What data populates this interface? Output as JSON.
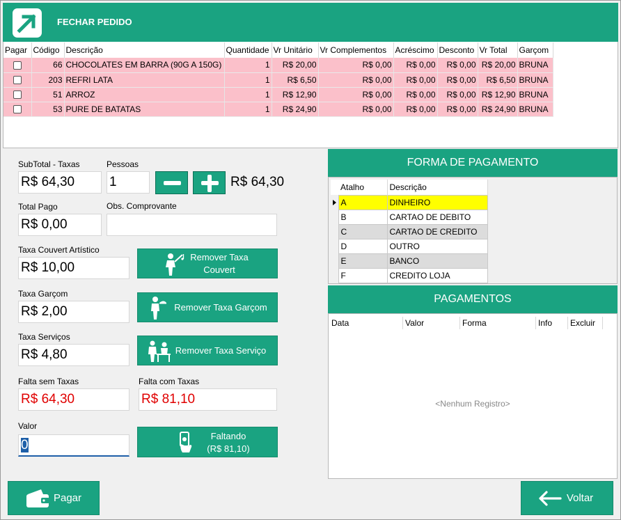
{
  "header": {
    "title": "FECHAR PEDIDO"
  },
  "order_table": {
    "columns": [
      "Pagar",
      "Código",
      "Descrição",
      "Quantidade",
      "Vr Unitário",
      "Vr Complementos",
      "Acréscimo",
      "Desconto",
      "Vr Total",
      "Garçom"
    ],
    "rows": [
      {
        "codigo": "66",
        "descricao": "CHOCOLATES EM BARRA (90G A 150G)",
        "quantidade": "1",
        "vr_unitario": "R$ 20,00",
        "vr_complementos": "R$ 0,00",
        "acrescimo": "R$ 0,00",
        "desconto": "R$ 0,00",
        "vr_total": "R$ 20,00",
        "garcom": "BRUNA"
      },
      {
        "codigo": "203",
        "descricao": "REFRI LATA",
        "quantidade": "1",
        "vr_unitario": "R$ 6,50",
        "vr_complementos": "R$ 0,00",
        "acrescimo": "R$ 0,00",
        "desconto": "R$ 0,00",
        "vr_total": "R$ 6,50",
        "garcom": "BRUNA"
      },
      {
        "codigo": "51",
        "descricao": "ARROZ",
        "quantidade": "1",
        "vr_unitario": "R$ 12,90",
        "vr_complementos": "R$ 0,00",
        "acrescimo": "R$ 0,00",
        "desconto": "R$ 0,00",
        "vr_total": "R$ 12,90",
        "garcom": "BRUNA"
      },
      {
        "codigo": "53",
        "descricao": "PURE DE BATATAS",
        "quantidade": "1",
        "vr_unitario": "R$ 24,90",
        "vr_complementos": "R$ 0,00",
        "acrescimo": "R$ 0,00",
        "desconto": "R$ 0,00",
        "vr_total": "R$ 24,90",
        "garcom": "BRUNA"
      }
    ]
  },
  "form": {
    "subtotal_label": "SubTotal - Taxas",
    "subtotal_value": "R$ 64,30",
    "pessoas_label": "Pessoas",
    "pessoas_value": "1",
    "per_person_value": "R$ 64,30",
    "total_pago_label": "Total Pago",
    "total_pago_value": "R$ 0,00",
    "obs_label": "Obs. Comprovante",
    "obs_value": "",
    "taxa_couvert_label": "Taxa Couvert Artístico",
    "taxa_couvert_value": "R$ 10,00",
    "remover_couvert_label_1": "Remover Taxa",
    "remover_couvert_label_2": "Couvert",
    "taxa_garcom_label": "Taxa Garçom",
    "taxa_garcom_value": "R$ 2,00",
    "remover_garcom_label": "Remover Taxa Garçom",
    "taxa_servicos_label": "Taxa Serviços",
    "taxa_servicos_value": "R$ 4,80",
    "remover_servico_label": "Remover Taxa Serviço",
    "falta_sem_label": "Falta sem Taxas",
    "falta_sem_value": "R$ 64,30",
    "falta_com_label": "Falta com Taxas",
    "falta_com_value": "R$ 81,10",
    "valor_label": "Valor",
    "valor_value": "0",
    "faltando_label_1": "Faltando",
    "faltando_label_2": "(R$ 81,10)"
  },
  "forma_pagamento": {
    "title": "FORMA DE PAGAMENTO",
    "columns": [
      "Atalho",
      "Descrição"
    ],
    "rows": [
      {
        "atalho": "A",
        "descricao": "DINHEIRO"
      },
      {
        "atalho": "B",
        "descricao": "CARTAO DE DEBITO"
      },
      {
        "atalho": "C",
        "descricao": "CARTAO DE CREDITO"
      },
      {
        "atalho": "D",
        "descricao": "OUTRO"
      },
      {
        "atalho": "E",
        "descricao": "BANCO"
      },
      {
        "atalho": "F",
        "descricao": "CREDITO LOJA"
      }
    ],
    "selected_color": "#ffff00"
  },
  "pagamentos": {
    "title": "PAGAMENTOS",
    "columns": [
      "Data",
      "Valor",
      "Forma",
      "Info",
      "Excluir"
    ],
    "empty_text": "<Nenhum Registro>"
  },
  "footer": {
    "pagar_label": "Pagar",
    "voltar_label": "Voltar"
  },
  "colors": {
    "accent": "#1aa381",
    "row_pink": "#fbc0ca",
    "alert_red": "#e00000"
  }
}
